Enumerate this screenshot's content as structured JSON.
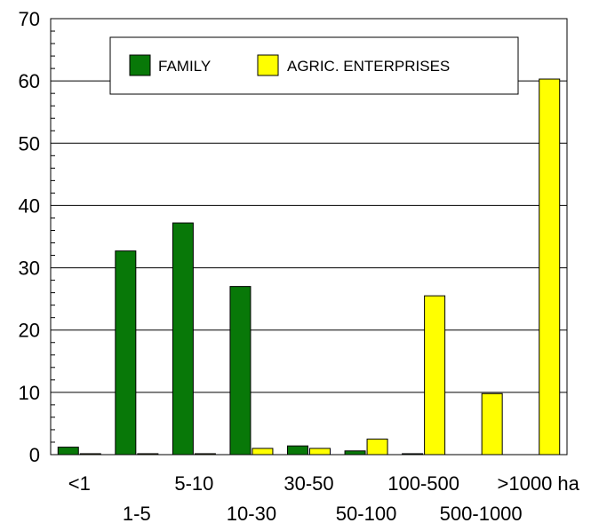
{
  "chart_data": {
    "type": "bar",
    "title": "",
    "xlabel": "",
    "ylabel": "",
    "ylim": [
      0,
      70
    ],
    "yticks": [
      0,
      10,
      20,
      30,
      40,
      50,
      60,
      70
    ],
    "grid": "horizontal",
    "legend_position": "top",
    "categories": [
      "<1",
      "1-5",
      "5-10",
      "10-30",
      "30-50",
      "50-100",
      "100-500",
      "500-1000",
      ">1000 ha"
    ],
    "series": [
      {
        "name": "FAMILY",
        "color": "#087808",
        "values": [
          1.2,
          32.7,
          37.2,
          27.0,
          1.4,
          0.6,
          0.15,
          0,
          0
        ]
      },
      {
        "name": "AGRIC. ENTERPRISES",
        "color": "#ffff00",
        "values": [
          0.15,
          0.15,
          0.15,
          1.0,
          1.0,
          2.5,
          25.5,
          9.8,
          60.3
        ]
      }
    ]
  }
}
